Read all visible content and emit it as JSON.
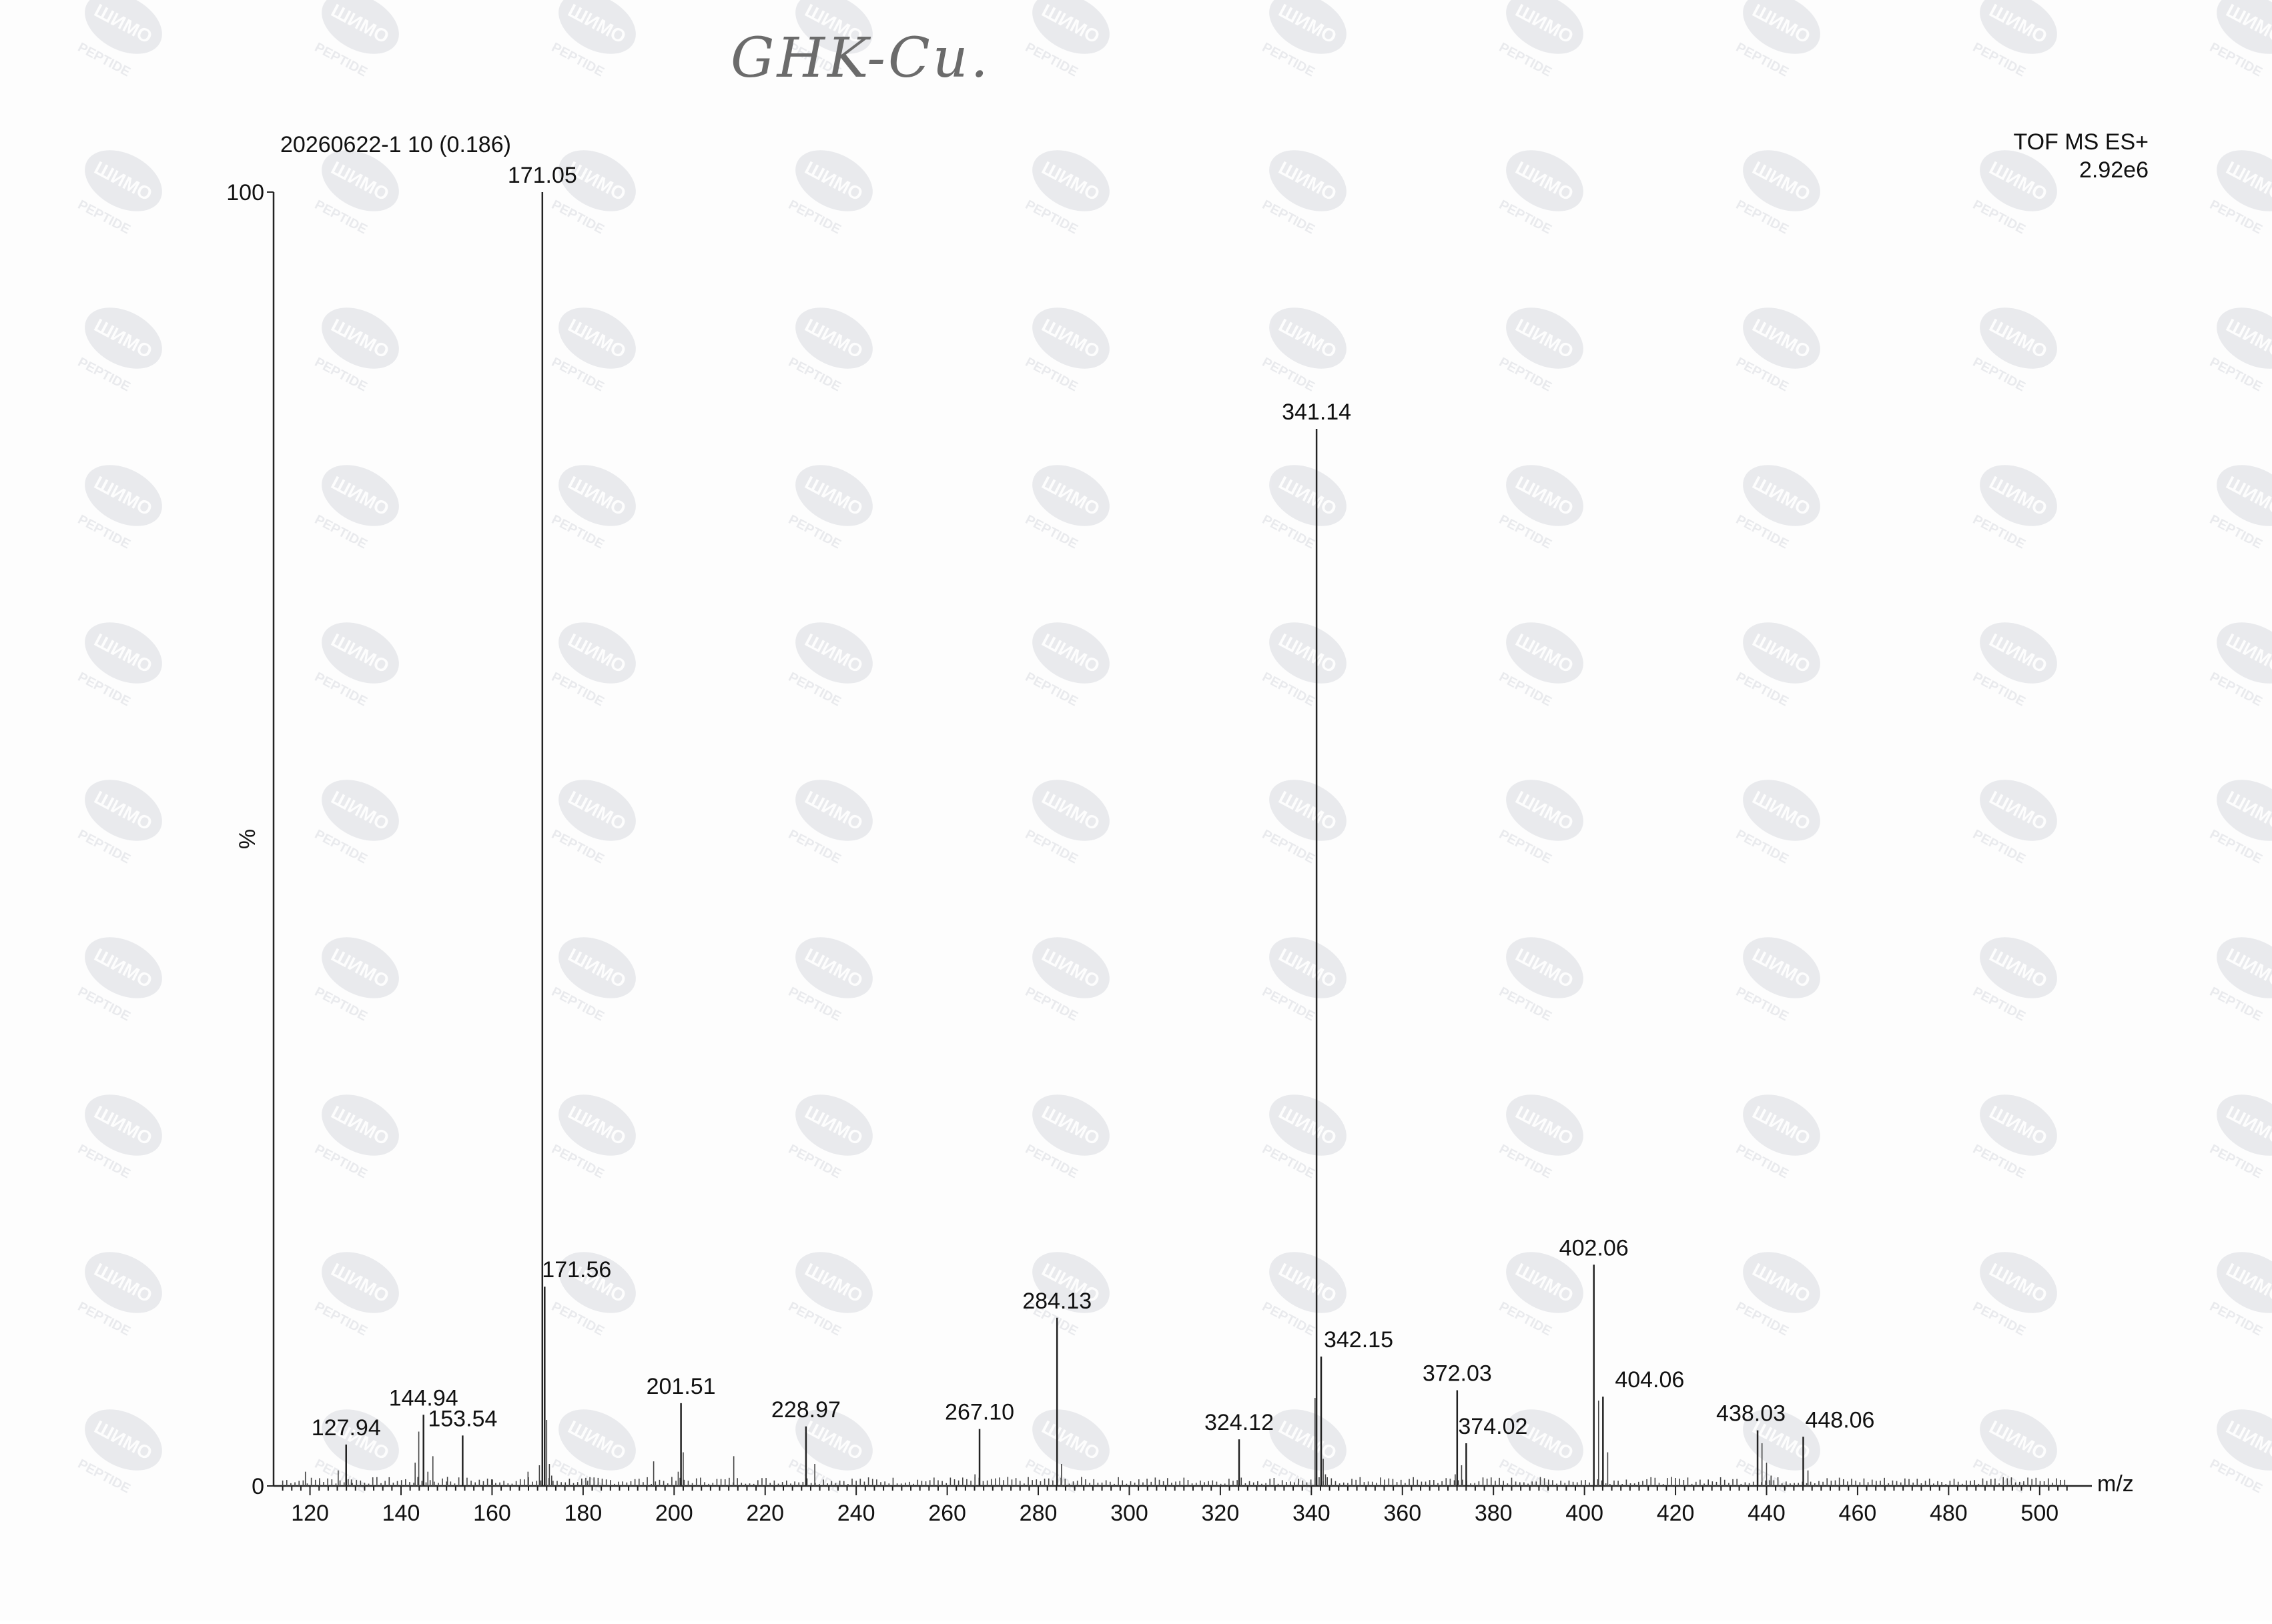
{
  "annotation": {
    "handwritten_text": "GHK-Cu."
  },
  "header": {
    "spectrum_id": "20260622-1 10 (0.186)",
    "instrument": "TOF MS ES+",
    "scale_max": "2.92e6"
  },
  "watermark": {
    "brand_text": "ШИМО",
    "sub_text": "PEPTIDE"
  },
  "chart_data": {
    "type": "bar",
    "xlabel": "m/z",
    "ylabel": "%",
    "xlim": [
      112,
      510
    ],
    "ylim": [
      0,
      100
    ],
    "x_ticks": [
      120,
      140,
      160,
      180,
      200,
      220,
      240,
      260,
      280,
      300,
      320,
      340,
      360,
      380,
      400,
      420,
      440,
      460,
      480,
      500
    ],
    "y_tick_labels": [
      "0",
      "100"
    ],
    "grid": false,
    "labeled_peaks": [
      {
        "mz": 127.94,
        "label": "127.94",
        "intensity": 3.2
      },
      {
        "mz": 144.94,
        "label": "144.94",
        "intensity": 5.5
      },
      {
        "mz": 153.54,
        "label": "153.54",
        "intensity": 3.9
      },
      {
        "mz": 171.05,
        "label": "171.05",
        "intensity": 100
      },
      {
        "mz": 171.56,
        "label": "171.56",
        "intensity": 15.4
      },
      {
        "mz": 201.51,
        "label": "201.51",
        "intensity": 6.4
      },
      {
        "mz": 228.97,
        "label": "228.97",
        "intensity": 4.6
      },
      {
        "mz": 267.1,
        "label": "267.10",
        "intensity": 4.4
      },
      {
        "mz": 284.13,
        "label": "284.13",
        "intensity": 13.0
      },
      {
        "mz": 324.12,
        "label": "324.12",
        "intensity": 3.6
      },
      {
        "mz": 341.14,
        "label": "341.14",
        "intensity": 81.7
      },
      {
        "mz": 342.15,
        "label": "342.15",
        "intensity": 10.0
      },
      {
        "mz": 372.03,
        "label": "372.03",
        "intensity": 7.4
      },
      {
        "mz": 374.02,
        "label": "374.02",
        "intensity": 3.3
      },
      {
        "mz": 402.06,
        "label": "402.06",
        "intensity": 17.1
      },
      {
        "mz": 404.06,
        "label": "404.06",
        "intensity": 6.9
      },
      {
        "mz": 438.03,
        "label": "438.03",
        "intensity": 4.3
      },
      {
        "mz": 448.06,
        "label": "448.06",
        "intensity": 3.8
      }
    ],
    "minor_peaks": [
      {
        "mz": 119.0,
        "intensity": 1.1
      },
      {
        "mz": 122.1,
        "intensity": 0.6
      },
      {
        "mz": 126.2,
        "intensity": 1.2
      },
      {
        "mz": 129.1,
        "intensity": 0.5
      },
      {
        "mz": 143.1,
        "intensity": 1.8
      },
      {
        "mz": 143.9,
        "intensity": 4.2
      },
      {
        "mz": 145.9,
        "intensity": 1.1
      },
      {
        "mz": 147.0,
        "intensity": 2.3
      },
      {
        "mz": 150.2,
        "intensity": 0.7
      },
      {
        "mz": 160.1,
        "intensity": 0.5
      },
      {
        "mz": 167.9,
        "intensity": 1.1
      },
      {
        "mz": 170.4,
        "intensity": 1.6
      },
      {
        "mz": 172.0,
        "intensity": 5.1
      },
      {
        "mz": 172.6,
        "intensity": 1.7
      },
      {
        "mz": 173.1,
        "intensity": 0.8
      },
      {
        "mz": 181.0,
        "intensity": 0.4
      },
      {
        "mz": 195.5,
        "intensity": 1.9
      },
      {
        "mz": 200.9,
        "intensity": 1.1
      },
      {
        "mz": 202.0,
        "intensity": 2.6
      },
      {
        "mz": 213.1,
        "intensity": 2.3
      },
      {
        "mz": 230.9,
        "intensity": 1.7
      },
      {
        "mz": 266.1,
        "intensity": 0.9
      },
      {
        "mz": 285.1,
        "intensity": 1.7
      },
      {
        "mz": 340.8,
        "intensity": 6.8
      },
      {
        "mz": 342.6,
        "intensity": 2.1
      },
      {
        "mz": 343.1,
        "intensity": 0.9
      },
      {
        "mz": 371.6,
        "intensity": 0.9
      },
      {
        "mz": 373.0,
        "intensity": 1.6
      },
      {
        "mz": 403.1,
        "intensity": 6.6
      },
      {
        "mz": 405.1,
        "intensity": 2.6
      },
      {
        "mz": 439.0,
        "intensity": 3.3
      },
      {
        "mz": 440.0,
        "intensity": 1.8
      },
      {
        "mz": 441.0,
        "intensity": 0.8
      },
      {
        "mz": 449.1,
        "intensity": 1.2
      }
    ]
  }
}
